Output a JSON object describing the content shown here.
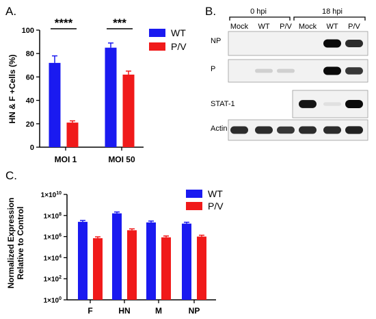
{
  "panels": {
    "a": {
      "label": "A.",
      "chart_data": {
        "type": "bar",
        "categories": [
          "MOI 1",
          "MOI 50"
        ],
        "series": [
          {
            "name": "WT",
            "values": [
              72,
              85
            ],
            "errors": [
              6,
              4
            ]
          },
          {
            "name": "P/V",
            "values": [
              21,
              62
            ],
            "errors": [
              1.5,
              3
            ]
          }
        ],
        "ylabel": "HN & F +Cells (%)",
        "ylim": [
          0,
          100
        ],
        "yticks": [
          "0",
          "20",
          "40",
          "60",
          "80",
          "100"
        ],
        "legend": "top-right",
        "significance": [
          "****",
          "***"
        ],
        "colors": {
          "WT": "#1a1af0",
          "P/V": "#f01a1a"
        }
      }
    },
    "b": {
      "label": "B.",
      "timepoints": [
        "0 hpi",
        "18 hpi"
      ],
      "lanes": [
        "Mock",
        "WT",
        "P/V",
        "Mock",
        "WT",
        "P/V"
      ],
      "rows": [
        {
          "name": "NP",
          "bands": [
            0,
            0,
            0,
            0,
            1.0,
            0.85
          ]
        },
        {
          "name": "P",
          "bands": [
            0,
            0.12,
            0.12,
            0,
            1.0,
            0.8
          ]
        },
        {
          "name": "STAT-1",
          "bands": [
            null,
            null,
            null,
            0.95,
            0.05,
            1.0
          ]
        },
        {
          "name": "Actin",
          "bands": [
            0.85,
            0.85,
            0.8,
            0.85,
            0.85,
            0.9
          ]
        }
      ]
    },
    "c": {
      "label": "C.",
      "chart_data": {
        "type": "bar",
        "scale": "log",
        "categories": [
          "F",
          "HN",
          "M",
          "NP"
        ],
        "series": [
          {
            "name": "WT",
            "values": [
              25000000.0,
              160000000.0,
              22000000.0,
              17000000.0
            ]
          },
          {
            "name": "P/V",
            "values": [
              700000.0,
              4000000.0,
              850000.0,
              1000000.0
            ]
          }
        ],
        "ylabel": [
          "Normalized Expression",
          "Relative to Control"
        ],
        "ylim": [
          1,
          10000000000.0
        ],
        "ytick_base": "1×10",
        "ytick_exponents": [
          "0",
          "2",
          "4",
          "6",
          "8",
          "10"
        ],
        "legend": "top-right",
        "colors": {
          "WT": "#1a1af0",
          "P/V": "#f01a1a"
        }
      }
    }
  }
}
